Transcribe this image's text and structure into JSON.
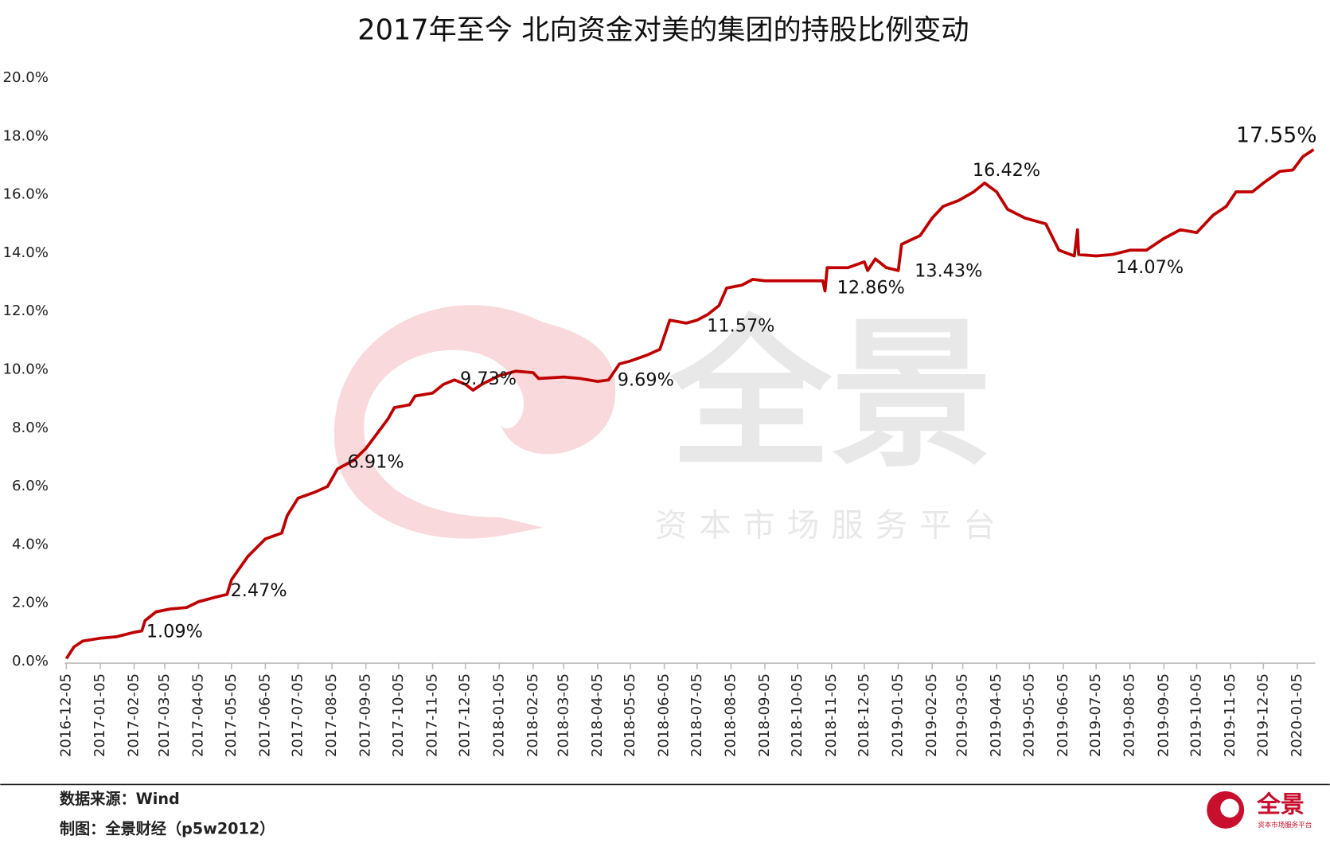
{
  "chart_data": {
    "type": "line",
    "title": "2017年至今 北向资金对美的集团的持股比例变动",
    "color": "#c00000",
    "x": [
      "2016-12-05",
      "2016-12-12",
      "2016-12-20",
      "2017-01-05",
      "2017-01-20",
      "2017-02-05",
      "2017-02-12",
      "2017-02-15",
      "2017-02-25",
      "2017-03-10",
      "2017-03-25",
      "2017-04-05",
      "2017-04-20",
      "2017-05-01",
      "2017-05-05",
      "2017-05-20",
      "2017-06-05",
      "2017-06-20",
      "2017-06-25",
      "2017-07-05",
      "2017-07-20",
      "2017-08-01",
      "2017-08-10",
      "2017-08-25",
      "2017-09-05",
      "2017-09-15",
      "2017-09-25",
      "2017-10-01",
      "2017-10-15",
      "2017-10-20",
      "2017-11-05",
      "2017-11-15",
      "2017-11-25",
      "2017-12-05",
      "2017-12-12",
      "2017-12-20",
      "2018-01-05",
      "2018-01-20",
      "2018-02-05",
      "2018-02-10",
      "2018-03-05",
      "2018-03-20",
      "2018-04-05",
      "2018-04-15",
      "2018-04-25",
      "2018-05-05",
      "2018-05-20",
      "2018-06-01",
      "2018-06-10",
      "2018-06-25",
      "2018-07-05",
      "2018-07-15",
      "2018-07-25",
      "2018-08-01",
      "2018-08-15",
      "2018-08-25",
      "2018-09-05",
      "2018-10-05",
      "2018-10-28",
      "2018-10-30",
      "2018-11-01",
      "2018-11-20",
      "2018-12-05",
      "2018-12-08",
      "2018-12-15",
      "2018-12-25",
      "2019-01-05",
      "2019-01-08",
      "2019-01-25",
      "2019-02-05",
      "2019-02-15",
      "2019-03-01",
      "2019-03-15",
      "2019-03-25",
      "2019-04-05",
      "2019-04-15",
      "2019-05-01",
      "2019-05-20",
      "2019-06-01",
      "2019-06-15",
      "2019-06-18",
      "2019-06-19",
      "2019-07-05",
      "2019-07-20",
      "2019-08-05",
      "2019-08-20",
      "2019-09-05",
      "2019-09-20",
      "2019-10-05",
      "2019-10-20",
      "2019-11-01",
      "2019-11-10",
      "2019-11-25",
      "2019-12-05",
      "2019-12-20",
      "2020-01-01",
      "2020-01-10",
      "2020-01-20"
    ],
    "values": [
      0.1,
      0.5,
      0.7,
      0.8,
      0.85,
      1.0,
      1.05,
      1.4,
      1.7,
      1.8,
      1.85,
      2.05,
      2.2,
      2.3,
      2.8,
      3.6,
      4.2,
      4.4,
      5.0,
      5.6,
      5.8,
      6.0,
      6.6,
      6.9,
      7.3,
      7.8,
      8.3,
      8.7,
      8.8,
      9.1,
      9.2,
      9.5,
      9.65,
      9.5,
      9.3,
      9.5,
      9.8,
      9.95,
      9.9,
      9.7,
      9.75,
      9.7,
      9.6,
      9.65,
      10.2,
      10.3,
      10.5,
      10.7,
      11.7,
      11.6,
      11.7,
      11.9,
      12.2,
      12.8,
      12.9,
      13.1,
      13.05,
      13.05,
      13.05,
      12.7,
      13.5,
      13.5,
      13.7,
      13.4,
      13.8,
      13.5,
      13.4,
      14.3,
      14.6,
      15.2,
      15.6,
      15.8,
      16.1,
      16.4,
      16.1,
      15.5,
      15.2,
      15.0,
      14.1,
      13.9,
      14.8,
      13.95,
      13.9,
      13.95,
      14.1,
      14.1,
      14.5,
      14.8,
      14.7,
      15.3,
      15.6,
      16.1,
      16.1,
      16.4,
      16.8,
      16.85,
      17.3,
      17.55
    ],
    "xlim": [
      "2016-12-05",
      "2020-01-20"
    ],
    "xticks": [
      "2016-12-05",
      "2017-01-05",
      "2017-02-05",
      "2017-03-05",
      "2017-04-05",
      "2017-05-05",
      "2017-06-05",
      "2017-07-05",
      "2017-08-05",
      "2017-09-05",
      "2017-10-05",
      "2017-11-05",
      "2017-12-05",
      "2018-01-05",
      "2018-02-05",
      "2018-03-05",
      "2018-04-05",
      "2018-05-05",
      "2018-06-05",
      "2018-07-05",
      "2018-08-05",
      "2018-09-05",
      "2018-10-05",
      "2018-11-05",
      "2018-12-05",
      "2019-01-05",
      "2019-02-05",
      "2019-03-05",
      "2019-04-05",
      "2019-05-05",
      "2019-06-05",
      "2019-07-05",
      "2019-08-05",
      "2019-09-05",
      "2019-10-05",
      "2019-11-05",
      "2019-12-05",
      "2020-01-05"
    ],
    "ylim": [
      0,
      20
    ],
    "yticks": [
      {
        "value": 0,
        "label": "0.0%"
      },
      {
        "value": 2,
        "label": "2.0%"
      },
      {
        "value": 4,
        "label": "4.0%"
      },
      {
        "value": 6,
        "label": "6.0%"
      },
      {
        "value": 8,
        "label": "8.0%"
      },
      {
        "value": 10,
        "label": "10.0%"
      },
      {
        "value": 12,
        "label": "12.0%"
      },
      {
        "value": 14,
        "label": "14.0%"
      },
      {
        "value": 16,
        "label": "16.0%"
      },
      {
        "value": 18,
        "label": "18.0%"
      },
      {
        "value": 20,
        "label": "20.0%"
      }
    ],
    "annotations": [
      {
        "x": "2017-03-14",
        "value": 1.09,
        "label": "1.09%"
      },
      {
        "x": "2017-05-30",
        "value": 2.47,
        "label": "2.47%"
      },
      {
        "x": "2017-09-14",
        "value": 6.91,
        "label": "6.91%"
      },
      {
        "x": "2017-12-26",
        "value": 9.73,
        "label": "9.73%"
      },
      {
        "x": "2018-05-19",
        "value": 9.69,
        "label": "9.69%"
      },
      {
        "x": "2018-08-14",
        "value": 11.57,
        "label": "11.57%"
      },
      {
        "x": "2018-12-11",
        "value": 12.86,
        "label": "12.86%"
      },
      {
        "x": "2019-02-20",
        "value": 13.43,
        "label": "13.43%"
      },
      {
        "x": "2019-04-14",
        "value": 16.42,
        "label": "16.42%"
      },
      {
        "x": "2019-08-23",
        "value": 14.07,
        "label": "14.07%"
      },
      {
        "x": "2019-12-17",
        "value": 17.55,
        "label": "17.55%"
      }
    ],
    "source": "数据来源：Wind",
    "credit": "制图：全景财经（p5w2012）",
    "watermark": {
      "brand": "全景",
      "slogan": "资本市场服务平台"
    },
    "logo": {
      "brand": "全景",
      "slogan": "资本市场服务平台"
    }
  }
}
